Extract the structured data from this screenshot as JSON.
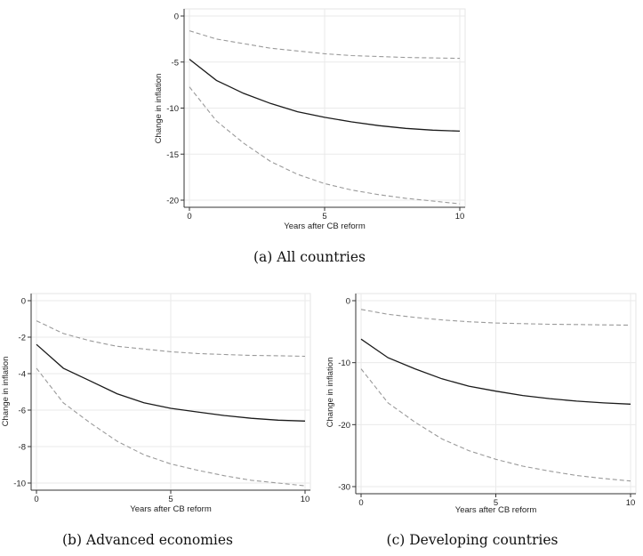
{
  "chart_data": [
    {
      "type": "line",
      "caption": "(a) All countries",
      "xlabel": "Years after CB reform",
      "ylabel": "Change in inflation",
      "xlim": [
        0,
        10
      ],
      "ylim": [
        -20,
        0
      ],
      "xticks": [
        0,
        5,
        10
      ],
      "yticks": [
        0,
        -5,
        -10,
        -15,
        -20
      ],
      "grid": true,
      "x": [
        0,
        1,
        2,
        3,
        4,
        5,
        6,
        7,
        8,
        9,
        10
      ],
      "series": [
        {
          "style": "solid",
          "color": "#1a1a1a",
          "values": [
            -4.7,
            -7.0,
            -8.4,
            -9.5,
            -10.4,
            -11.0,
            -11.5,
            -11.9,
            -12.2,
            -12.4,
            -12.5
          ]
        },
        {
          "style": "dashed",
          "color": "#9a9a9a",
          "values": [
            -1.6,
            -2.5,
            -3.0,
            -3.5,
            -3.8,
            -4.1,
            -4.3,
            -4.4,
            -4.5,
            -4.55,
            -4.6
          ]
        },
        {
          "style": "dashed",
          "color": "#9a9a9a",
          "values": [
            -7.7,
            -11.4,
            -13.8,
            -15.8,
            -17.2,
            -18.2,
            -18.9,
            -19.4,
            -19.8,
            -20.1,
            -20.4
          ]
        }
      ]
    },
    {
      "type": "line",
      "caption": "(b) Advanced economies",
      "xlabel": "Years after CB reform",
      "ylabel": "Change in inflation",
      "xlim": [
        0,
        10
      ],
      "ylim": [
        -10,
        0
      ],
      "xticks": [
        0,
        5,
        10
      ],
      "yticks": [
        0,
        -2,
        -4,
        -6,
        -8,
        -10
      ],
      "grid": true,
      "x": [
        0,
        1,
        2,
        3,
        4,
        5,
        6,
        7,
        8,
        9,
        10
      ],
      "series": [
        {
          "style": "solid",
          "color": "#1a1a1a",
          "values": [
            -2.4,
            -3.7,
            -4.4,
            -5.1,
            -5.6,
            -5.9,
            -6.1,
            -6.3,
            -6.45,
            -6.55,
            -6.6
          ]
        },
        {
          "style": "dashed",
          "color": "#9a9a9a",
          "values": [
            -1.1,
            -1.8,
            -2.2,
            -2.5,
            -2.65,
            -2.8,
            -2.9,
            -2.95,
            -3.0,
            -3.02,
            -3.05
          ]
        },
        {
          "style": "dashed",
          "color": "#9a9a9a",
          "values": [
            -3.7,
            -5.6,
            -6.7,
            -7.7,
            -8.45,
            -8.95,
            -9.3,
            -9.6,
            -9.85,
            -10.0,
            -10.15
          ]
        }
      ]
    },
    {
      "type": "line",
      "caption": "(c) Developing countries",
      "xlabel": "Years after CB reform",
      "ylabel": "Change in inflation",
      "xlim": [
        0,
        10
      ],
      "ylim": [
        -30,
        0
      ],
      "xticks": [
        0,
        5,
        10
      ],
      "yticks": [
        0,
        -10,
        -20,
        -30
      ],
      "grid": true,
      "x": [
        0,
        1,
        2,
        3,
        4,
        5,
        6,
        7,
        8,
        9,
        10
      ],
      "series": [
        {
          "style": "solid",
          "color": "#1a1a1a",
          "values": [
            -6.2,
            -9.2,
            -11.0,
            -12.6,
            -13.8,
            -14.6,
            -15.3,
            -15.8,
            -16.2,
            -16.5,
            -16.7
          ]
        },
        {
          "style": "dashed",
          "color": "#9a9a9a",
          "values": [
            -1.4,
            -2.2,
            -2.7,
            -3.1,
            -3.4,
            -3.6,
            -3.7,
            -3.8,
            -3.85,
            -3.9,
            -3.95
          ]
        },
        {
          "style": "dashed",
          "color": "#9a9a9a",
          "values": [
            -11.0,
            -16.5,
            -19.6,
            -22.3,
            -24.2,
            -25.6,
            -26.7,
            -27.5,
            -28.2,
            -28.7,
            -29.1
          ]
        }
      ]
    }
  ]
}
